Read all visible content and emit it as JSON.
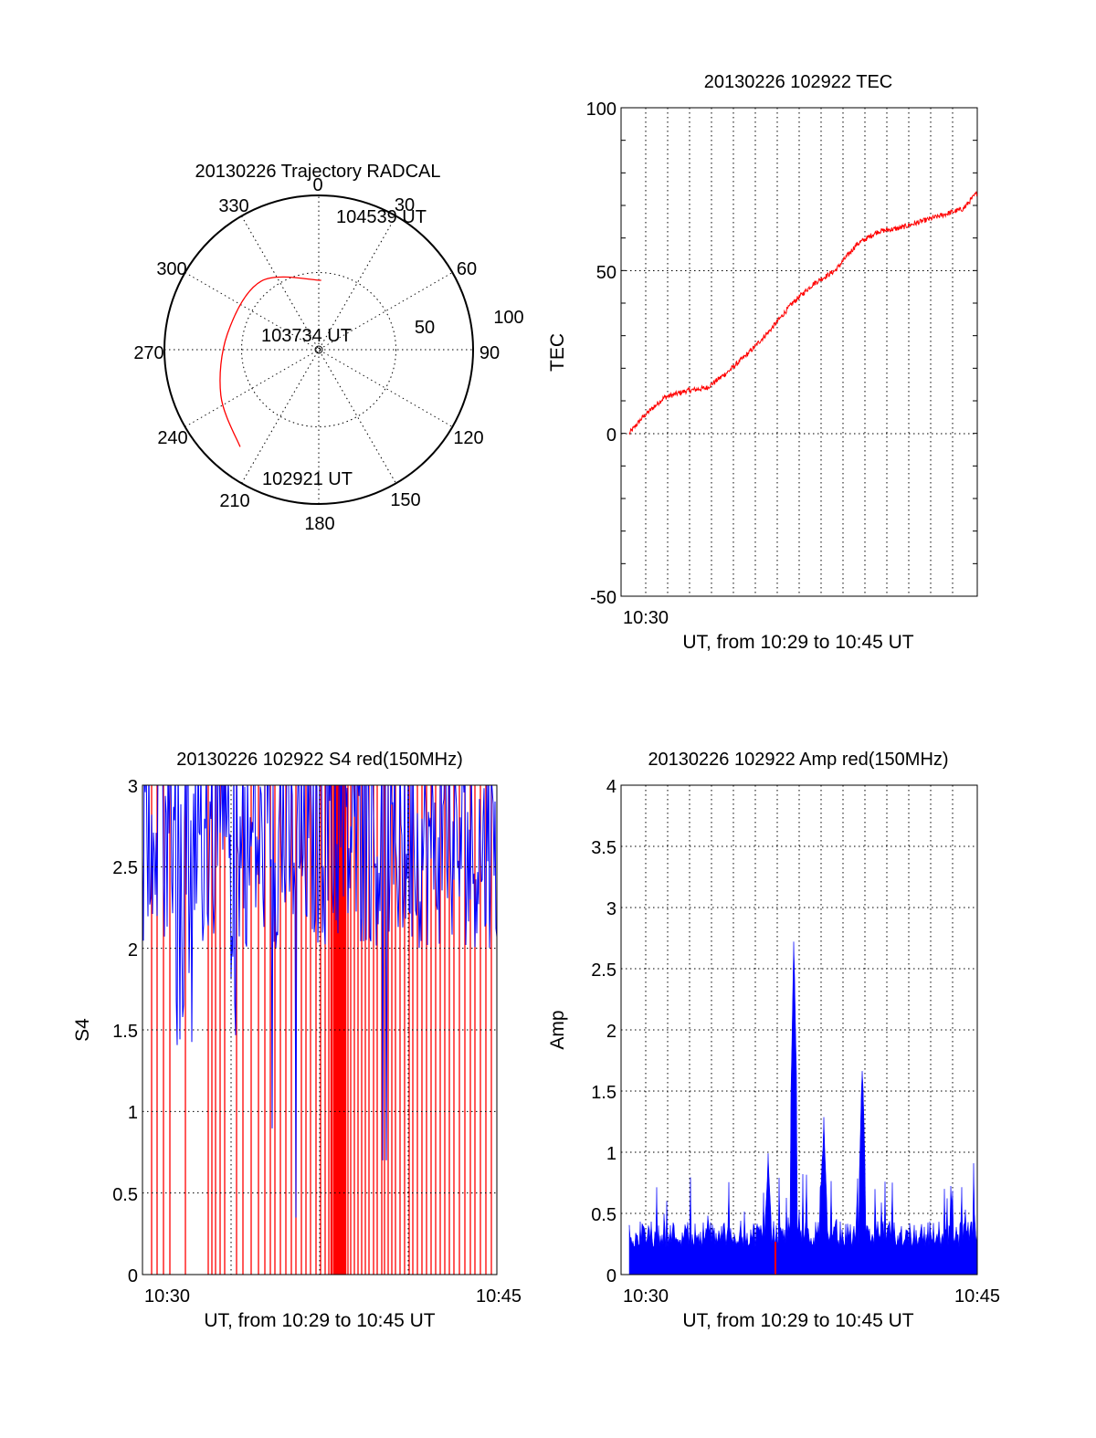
{
  "colors": {
    "red": "#ff0000",
    "blue": "#0000ff",
    "axis": "#000000",
    "background": "#ffffff"
  },
  "chart_data": [
    {
      "id": "trajectory",
      "type": "polar",
      "title": "20130226 Trajectory RADCAL",
      "angle_labels": [
        "0",
        "30",
        "60",
        "90",
        "120",
        "150",
        "180",
        "210",
        "240",
        "270",
        "300",
        "330"
      ],
      "radius_labels": [
        "50",
        "100"
      ],
      "time_labels": [
        "104539 UT",
        "103734 UT",
        "102921 UT"
      ],
      "rmax": 100,
      "ring_radii": [
        50,
        100
      ],
      "track": [
        {
          "az": 2,
          "zen": 45
        },
        {
          "az": 320,
          "zen": 58
        },
        {
          "az": 280,
          "zen": 60
        },
        {
          "az": 245,
          "zen": 70
        },
        {
          "az": 219,
          "zen": 81
        }
      ]
    },
    {
      "id": "tec",
      "type": "line",
      "title": "20130226 102922 TEC",
      "xlabel": "UT, from 10:29 to 10:45 UT",
      "ylabel": "TEC",
      "x_ticks": [
        "10:30"
      ],
      "y_ticks": [
        "100",
        "50",
        "0",
        "-50"
      ],
      "xlim": [
        "10:29:22",
        "10:45:39"
      ],
      "ylim": [
        -50,
        100
      ],
      "grid": "dotted",
      "series": [
        {
          "color": "red",
          "x": [
            "10:29:22",
            "10:30:00",
            "10:31:00",
            "10:32:00",
            "10:33:00",
            "10:34:00",
            "10:35:00",
            "10:36:00",
            "10:37:00",
            "10:38:00",
            "10:39:00",
            "10:40:00",
            "10:41:00",
            "10:42:00",
            "10:43:00",
            "10:44:00",
            "10:45:00",
            "10:45:39"
          ],
          "values": [
            0,
            5,
            11,
            13,
            14,
            19,
            25,
            32,
            40,
            46,
            50,
            58,
            62,
            63,
            65,
            67,
            69,
            74
          ]
        }
      ]
    },
    {
      "id": "s4",
      "type": "line",
      "title": "20130226 102922 S4 red(150MHz)",
      "xlabel": "UT, from 10:29 to 10:45 UT",
      "ylabel": "S4",
      "x_ticks": [
        "10:30",
        "10:45"
      ],
      "y_ticks": [
        "3",
        "2.5",
        "2",
        "1.5",
        "1",
        "0.5",
        "0"
      ],
      "xlim": [
        "10:29:22",
        "10:45:39"
      ],
      "ylim": [
        0,
        3
      ],
      "grid": "dotted",
      "series": [
        {
          "color": "blue",
          "pattern": "noisy, mostly between 1.5 and 3 with dips toward 0.4"
        },
        {
          "color": "red",
          "pattern": "many vertical spikes from 0 to 3, densest near 10:38"
        }
      ]
    },
    {
      "id": "amp",
      "type": "line",
      "title": "20130226 102922 Amp red(150MHz)",
      "xlabel": "UT, from 10:29 to 10:45 UT",
      "ylabel": "Amp",
      "x_ticks": [
        "10:30",
        "10:45"
      ],
      "y_ticks": [
        "4",
        "3.5",
        "3",
        "2.5",
        "2",
        "1.5",
        "1",
        "0.5",
        "0"
      ],
      "xlim": [
        "10:29:22",
        "10:45:39"
      ],
      "ylim": [
        0,
        4
      ],
      "grid": "dotted",
      "series": [
        {
          "color": "blue",
          "baseline": 0.25,
          "peaks": [
            [
              6.5,
              1.0
            ],
            [
              7.7,
              2.7
            ],
            [
              9.1,
              1.2
            ],
            [
              10.9,
              1.7
            ]
          ]
        }
      ]
    }
  ]
}
